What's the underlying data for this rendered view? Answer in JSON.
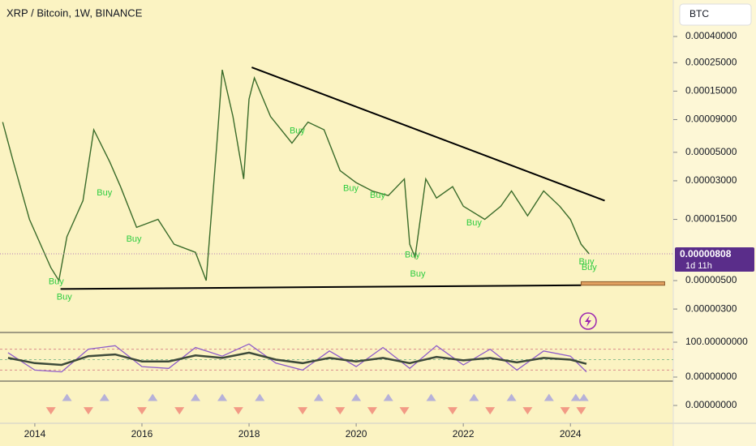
{
  "chart_data": [
    {
      "type": "line",
      "title": "XRP / Bitcoin, 1W, BINANCE",
      "currency_button": "BTC",
      "log_scale": true,
      "color": "#3a6b2a",
      "xlim": [
        2013.35,
        2025.92
      ],
      "xticks": [
        2014,
        2016,
        2018,
        2020,
        2022,
        2024
      ],
      "ylim": [
        1.97e-06,
        0.00077
      ],
      "yticks": [
        {
          "value": 0.0004,
          "label": "0.00040000"
        },
        {
          "value": 0.00025,
          "label": "0.00025000"
        },
        {
          "value": 0.00015,
          "label": "0.00015000"
        },
        {
          "value": 9e-05,
          "label": "0.00009000"
        },
        {
          "value": 5e-05,
          "label": "0.00005000"
        },
        {
          "value": 3e-05,
          "label": "0.00003000"
        },
        {
          "value": 1.5e-05,
          "label": "0.00001500"
        },
        {
          "value": 5e-06,
          "label": "0.00000500"
        },
        {
          "value": 3e-06,
          "label": "0.00000300"
        }
      ],
      "x": [
        2013.4,
        2013.6,
        2013.9,
        2014.3,
        2014.45,
        2014.6,
        2014.9,
        2015.1,
        2015.4,
        2015.6,
        2015.9,
        2016.3,
        2016.6,
        2017.0,
        2017.2,
        2017.4,
        2017.5,
        2017.7,
        2017.9,
        2018.0,
        2018.1,
        2018.4,
        2018.8,
        2019.1,
        2019.4,
        2019.7,
        2020.0,
        2020.3,
        2020.6,
        2020.9,
        2021.0,
        2021.1,
        2021.3,
        2021.5,
        2021.8,
        2022.0,
        2022.4,
        2022.7,
        2022.9,
        2023.2,
        2023.5,
        2023.8,
        2024.0,
        2024.2,
        2024.35
      ],
      "values": [
        8.6e-05,
        4.2e-05,
        1.5e-05,
        6.3e-06,
        5e-06,
        1.1e-05,
        2.1e-05,
        7.5e-05,
        4.2e-05,
        2.7e-05,
        1.3e-05,
        1.5e-05,
        9.6e-06,
        8.3e-06,
        5e-06,
        5.9e-05,
        0.00022,
        9.5e-05,
        3.1e-05,
        0.00013,
        0.00019,
        9.5e-05,
        5.9e-05,
        8.6e-05,
        7.5e-05,
        3.6e-05,
        2.9e-05,
        2.5e-05,
        2.3e-05,
        3.1e-05,
        9.6e-06,
        7.6e-06,
        3.1e-05,
        2.2e-05,
        2.7e-05,
        1.9e-05,
        1.5e-05,
        1.9e-05,
        2.5e-05,
        1.6e-05,
        2.5e-05,
        1.9e-05,
        1.5e-05,
        9.6e-06,
        8.08e-06
      ],
      "last_price": 8.08e-06,
      "countdown": "1d 11h",
      "trendlines": [
        {
          "x": [
            2018.05,
            2024.64
          ],
          "y": [
            0.00023,
            2.1e-05
          ]
        },
        {
          "x": [
            2014.48,
            2024.2
          ],
          "y": [
            4.3e-06,
            4.6e-06
          ]
        }
      ],
      "zone": {
        "x": [
          2024.2,
          2025.76
        ],
        "y": [
          4.6e-06,
          4.9e-06
        ]
      },
      "annotations": [
        {
          "text": "Buy",
          "x": 2014.4,
          "y": 4.9e-06
        },
        {
          "text": "Buy",
          "x": 2014.55,
          "y": 3.7e-06
        },
        {
          "text": "Buy",
          "x": 2015.3,
          "y": 2.4e-05
        },
        {
          "text": "Buy",
          "x": 2015.85,
          "y": 1.05e-05
        },
        {
          "text": "Buy",
          "x": 2018.9,
          "y": 7.3e-05
        },
        {
          "text": "Buy",
          "x": 2019.9,
          "y": 2.6e-05
        },
        {
          "text": "Buy",
          "x": 2020.4,
          "y": 2.3e-05
        },
        {
          "text": "Buy",
          "x": 2021.05,
          "y": 7.9e-06
        },
        {
          "text": "Buy",
          "x": 2021.15,
          "y": 5.6e-06
        },
        {
          "text": "Buy",
          "x": 2022.2,
          "y": 1.4e-05
        },
        {
          "text": "Buy",
          "x": 2024.3,
          "y": 7e-06
        },
        {
          "text": "Buy",
          "x": 2024.35,
          "y": 6.3e-06
        }
      ]
    },
    {
      "type": "line",
      "xlim": [
        2013.35,
        2025.92
      ],
      "ylim": [
        -11.6,
        127.9
      ],
      "yticks": [
        {
          "value": 100,
          "label": "100.00000000"
        },
        {
          "value": 0,
          "label": "0.00000000"
        }
      ],
      "levels": [
        20,
        50,
        80
      ],
      "x": [
        2013.5,
        2014,
        2014.5,
        2015,
        2015.5,
        2016,
        2016.5,
        2017,
        2017.5,
        2018,
        2018.5,
        2019,
        2019.5,
        2020,
        2020.5,
        2021,
        2021.5,
        2022,
        2022.5,
        2023,
        2023.5,
        2024,
        2024.3
      ],
      "series": [
        {
          "color": "#8e5cc9",
          "values": [
            70,
            20,
            15,
            80,
            90,
            30,
            25,
            85,
            60,
            95,
            40,
            20,
            75,
            30,
            85,
            25,
            90,
            35,
            80,
            20,
            75,
            60,
            15
          ]
        },
        {
          "color": "#3d4a3a",
          "values": [
            55,
            40,
            35,
            60,
            65,
            45,
            45,
            62,
            55,
            70,
            50,
            40,
            55,
            45,
            55,
            40,
            58,
            48,
            55,
            42,
            55,
            50,
            38
          ]
        }
      ]
    },
    {
      "type": "scatter",
      "xlim": [
        2013.35,
        2025.92
      ],
      "ylim": [
        -1.32,
        1.8
      ],
      "yticks": [
        {
          "value": 0,
          "label": "0.00000000"
        }
      ],
      "series": [
        {
          "color": "#a9a4dc",
          "marker": "triangle-up",
          "x": [
            2014.6,
            2015.3,
            2016.2,
            2017.0,
            2017.5,
            2018.2,
            2019.3,
            2020.0,
            2020.6,
            2021.4,
            2022.2,
            2022.9,
            2023.6,
            2024.1,
            2024.25
          ],
          "values": [
            0.6,
            0.6,
            0.6,
            0.6,
            0.6,
            0.6,
            0.6,
            0.6,
            0.6,
            0.6,
            0.6,
            0.6,
            0.6,
            0.6,
            0.6
          ]
        },
        {
          "color": "#f08a7a",
          "marker": "triangle-down",
          "x": [
            2014.3,
            2015.0,
            2016.0,
            2016.7,
            2017.8,
            2019.0,
            2019.7,
            2020.3,
            2020.9,
            2021.8,
            2022.5,
            2023.2,
            2023.9,
            2024.2
          ],
          "values": [
            -0.4,
            -0.4,
            -0.4,
            -0.4,
            -0.4,
            -0.4,
            -0.4,
            -0.4,
            -0.4,
            -0.4,
            -0.4,
            -0.4,
            -0.4,
            -0.4
          ]
        }
      ]
    }
  ]
}
